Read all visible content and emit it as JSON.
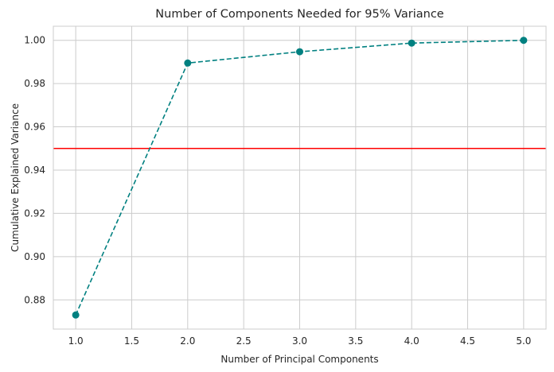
{
  "chart_data": {
    "type": "line",
    "title": "Number of Components Needed for 95% Variance",
    "xlabel": "Number of Principal Components",
    "ylabel": "Cumulative Explained Variance",
    "xlim": [
      0.8,
      5.2
    ],
    "ylim": [
      0.8665,
      1.0065
    ],
    "x_ticks": [
      1.0,
      1.5,
      2.0,
      2.5,
      3.0,
      3.5,
      4.0,
      4.5,
      5.0
    ],
    "x_tick_labels": [
      "1.0",
      "1.5",
      "2.0",
      "2.5",
      "3.0",
      "3.5",
      "4.0",
      "4.5",
      "5.0"
    ],
    "y_ticks": [
      0.88,
      0.9,
      0.92,
      0.94,
      0.96,
      0.98,
      1.0
    ],
    "y_tick_labels": [
      "0.88",
      "0.90",
      "0.92",
      "0.94",
      "0.96",
      "0.98",
      "1.00"
    ],
    "grid": true,
    "series": [
      {
        "x": [
          1,
          2,
          3,
          4,
          5
        ],
        "values": [
          0.873,
          0.9895,
          0.9947,
          0.9987,
          1.0
        ],
        "color": "#008080",
        "line_style": "dashed",
        "marker": "circle"
      }
    ],
    "reference_line": {
      "y": 0.95,
      "color": "#ff0000"
    }
  }
}
